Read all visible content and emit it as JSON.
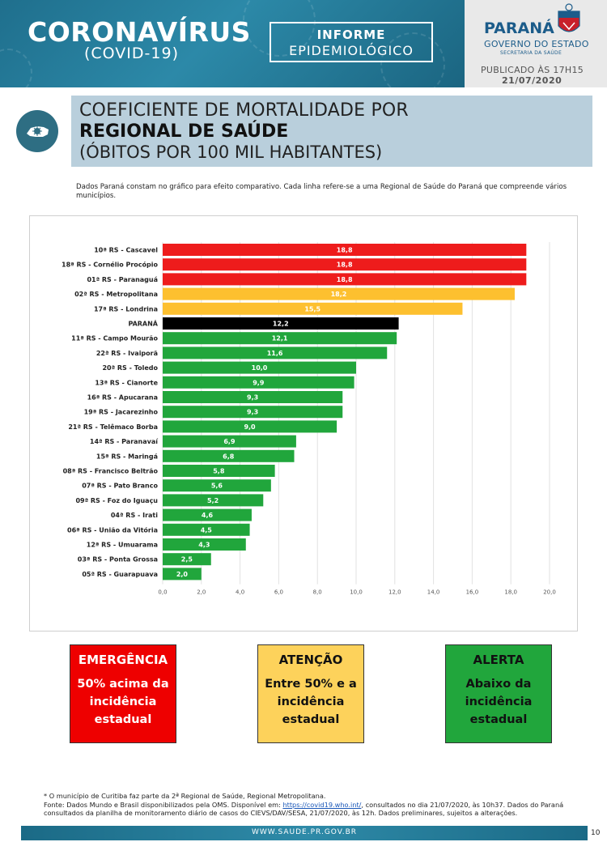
{
  "header": {
    "brand_title": "CORONAVÍRUS",
    "brand_subtitle": "(COVID-19)",
    "informe_line1": "INFORME",
    "informe_line2": "EPIDEMIOLÓGICO",
    "gov_name": "PARANÁ",
    "gov_line1": "GOVERNO DO ESTADO",
    "gov_line2": "SECRETARIA DA SAÚDE",
    "published_label": "PUBLICADO ÀS 17H15",
    "published_date": "21/07/2020"
  },
  "title": {
    "line1": "COEFICIENTE DE MORTALIDADE POR",
    "line2": "REGIONAL DE SAÚDE",
    "line3": "(ÓBITOS POR 100 MIL HABITANTES)"
  },
  "intro": "Dados Paraná constam no gráfico para efeito comparativo. Cada linha refere-se a uma Regional de Saúde do Paraná que compreende vários municípios.",
  "chart_data": {
    "type": "bar",
    "orientation": "horizontal",
    "xlim": [
      0,
      20
    ],
    "ticks": [
      "0,0",
      "2,0",
      "4,0",
      "6,0",
      "8,0",
      "10,0",
      "12,0",
      "14,0",
      "16,0",
      "18,0",
      "20,0"
    ],
    "grid": true,
    "categories": [
      "10ª RS - Cascavel",
      "18ª RS - Cornélio Procópio",
      "01ª RS - Paranaguá",
      "02ª RS - Metropolitana",
      "17ª RS - Londrina",
      "PARANÁ",
      "11ª RS - Campo Mourão",
      "22ª RS - Ivaiporã",
      "20ª RS - Toledo",
      "13ª RS - Cianorte",
      "16ª RS - Apucarana",
      "19ª RS - Jacarezinho",
      "21ª RS - Telêmaco Borba",
      "14ª RS - Paranavaí",
      "15ª RS - Maringá",
      "08ª RS - Francisco Beltrão",
      "07ª RS - Pato Branco",
      "09ª RS - Foz do Iguaçu",
      "04ª RS - Irati",
      "06ª RS - União da Vitória",
      "12ª RS - Umuarama",
      "03ª RS - Ponta Grossa",
      "05ª RS - Guarapuava"
    ],
    "values": [
      18.8,
      18.8,
      18.8,
      18.2,
      15.5,
      12.2,
      12.1,
      11.6,
      10.0,
      9.9,
      9.3,
      9.3,
      9.0,
      6.9,
      6.8,
      5.8,
      5.6,
      5.2,
      4.6,
      4.5,
      4.3,
      2.5,
      2.0
    ],
    "value_labels": [
      "18,8",
      "18,8",
      "18,8",
      "18,2",
      "15,5",
      "12,2",
      "12,1",
      "11,6",
      "10,0",
      "9,9",
      "9,3",
      "9,3",
      "9,0",
      "6,9",
      "6,8",
      "5,8",
      "5,6",
      "5,2",
      "4,6",
      "4,5",
      "4,3",
      "2,5",
      "2,0"
    ],
    "levels": [
      "red",
      "red",
      "red",
      "yellow",
      "yellow",
      "black",
      "green",
      "green",
      "green",
      "green",
      "green",
      "green",
      "green",
      "green",
      "green",
      "green",
      "green",
      "green",
      "green",
      "green",
      "green",
      "green",
      "green"
    ],
    "colors": {
      "red": "#ee1c1c",
      "yellow": "#fdc02f",
      "black": "#000000",
      "green": "#21a63c"
    }
  },
  "legend": {
    "emergency_title": "EMERGÊNCIA",
    "emergency_body": "50% acima da incidência estadual",
    "attention_title": "ATENÇÃO",
    "attention_body": "Entre 50% e a incidência estadual",
    "alert_title": "ALERTA",
    "alert_body": "Abaixo da incidência estadual"
  },
  "footnotes": {
    "line1": "* O município de Curitiba faz parte da 2ª Regional de Saúde, Regional Metropolitana.",
    "source_prefix": "Fonte: Dados Mundo e Brasil disponibilizados pela OMS. Disponível em: ",
    "source_link": "https://covid19.who.int/",
    "source_suffix": ", consultados no dia 21/07/2020, às 10h37. Dados do Paraná consultados da planilha de monitoramento diário de casos do CIEVS/DAV/SESA, 21/07/2020, às 12h. Dados preliminares, sujeitos a alterações."
  },
  "footer": {
    "url": "WWW.SAUDE.PR.GOV.BR",
    "page": "10"
  }
}
